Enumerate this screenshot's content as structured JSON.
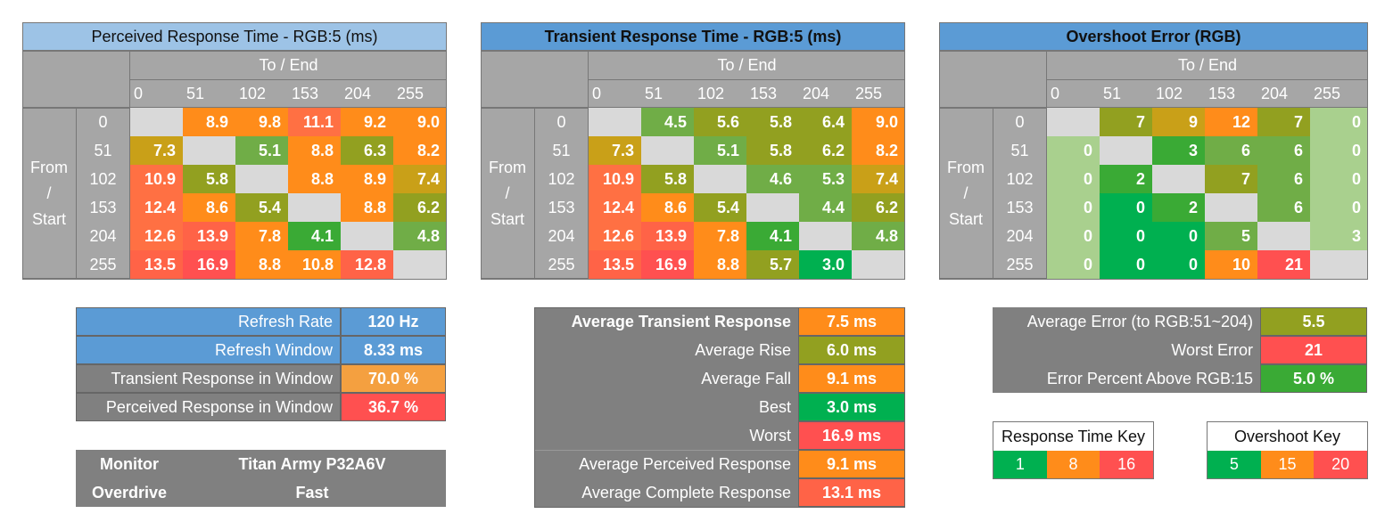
{
  "colors": {
    "green": "#00b050",
    "green_mid": "#3aaa35",
    "olive_green": "#70ad47",
    "olive": "#92a020",
    "gold": "#c9a018",
    "orange": "#ff8c1a",
    "orange_red": "#ff7043",
    "red": "#ff5050",
    "light_green": "#a9d08e",
    "gray_header": "#a6a6a6",
    "gray_table": "#808080",
    "blue": "#5b9bd5",
    "light_blue": "#9dc3e6"
  },
  "matrices": [
    {
      "title": "Perceived Response Time - RGB:5 (ms)",
      "title_style": "light",
      "to_end_label": "To / End",
      "from_label": [
        "From",
        "/",
        "Start"
      ],
      "columns": [
        "0",
        "51",
        "102",
        "153",
        "204",
        "255"
      ],
      "rows": [
        "0",
        "51",
        "102",
        "153",
        "204",
        "255"
      ],
      "values": [
        [
          "",
          "8.9",
          "9.8",
          "11.1",
          "9.2",
          "9.0"
        ],
        [
          "7.3",
          "",
          "5.1",
          "8.8",
          "6.3",
          "8.2"
        ],
        [
          "10.9",
          "5.8",
          "",
          "8.8",
          "8.9",
          "7.4"
        ],
        [
          "12.4",
          "8.6",
          "5.4",
          "",
          "8.8",
          "6.2"
        ],
        [
          "12.6",
          "13.9",
          "7.8",
          "4.1",
          "",
          "4.8"
        ],
        [
          "13.5",
          "16.9",
          "8.8",
          "10.8",
          "12.8",
          ""
        ]
      ],
      "cell_colors": [
        [
          "",
          "#ff8c1a",
          "#ff8c1a",
          "#ff7043",
          "#ff8c1a",
          "#ff8c1a"
        ],
        [
          "#c9a018",
          "",
          "#70ad47",
          "#ff8c1a",
          "#92a020",
          "#ff8c1a"
        ],
        [
          "#ff7043",
          "#92a020",
          "",
          "#ff8c1a",
          "#ff8c1a",
          "#c9a018"
        ],
        [
          "#ff7043",
          "#ff8c1a",
          "#92a020",
          "",
          "#ff8c1a",
          "#92a020"
        ],
        [
          "#ff7043",
          "#ff6347",
          "#ff8c1a",
          "#3aaa35",
          "",
          "#70ad47"
        ],
        [
          "#ff6347",
          "#ff5050",
          "#ff8c1a",
          "#ff8c1a",
          "#ff6347",
          ""
        ]
      ]
    },
    {
      "title": "Transient Response Time - RGB:5 (ms)",
      "title_style": "dark",
      "to_end_label": "To / End",
      "from_label": [
        "From",
        "/",
        "Start"
      ],
      "columns": [
        "0",
        "51",
        "102",
        "153",
        "204",
        "255"
      ],
      "rows": [
        "0",
        "51",
        "102",
        "153",
        "204",
        "255"
      ],
      "values": [
        [
          "",
          "4.5",
          "5.6",
          "5.8",
          "6.4",
          "9.0"
        ],
        [
          "7.3",
          "",
          "5.1",
          "5.8",
          "6.2",
          "8.2"
        ],
        [
          "10.9",
          "5.8",
          "",
          "4.6",
          "5.3",
          "7.4"
        ],
        [
          "12.4",
          "8.6",
          "5.4",
          "",
          "4.4",
          "6.2"
        ],
        [
          "12.6",
          "13.9",
          "7.8",
          "4.1",
          "",
          "4.8"
        ],
        [
          "13.5",
          "16.9",
          "8.8",
          "5.7",
          "3.0",
          ""
        ]
      ],
      "cell_colors": [
        [
          "",
          "#70ad47",
          "#92a020",
          "#92a020",
          "#92a020",
          "#ff8c1a"
        ],
        [
          "#c9a018",
          "",
          "#70ad47",
          "#92a020",
          "#92a020",
          "#ff8c1a"
        ],
        [
          "#ff7043",
          "#92a020",
          "",
          "#70ad47",
          "#70ad47",
          "#c9a018"
        ],
        [
          "#ff7043",
          "#ff8c1a",
          "#92a020",
          "",
          "#70ad47",
          "#92a020"
        ],
        [
          "#ff7043",
          "#ff6347",
          "#ff8c1a",
          "#3aaa35",
          "",
          "#70ad47"
        ],
        [
          "#ff6347",
          "#ff5050",
          "#ff8c1a",
          "#92a020",
          "#00b050",
          ""
        ]
      ]
    },
    {
      "title": "Overshoot Error (RGB)",
      "title_style": "dark",
      "to_end_label": "To / End",
      "from_label": [
        "From",
        "/",
        "Start"
      ],
      "columns": [
        "0",
        "51",
        "102",
        "153",
        "204",
        "255"
      ],
      "rows": [
        "0",
        "51",
        "102",
        "153",
        "204",
        "255"
      ],
      "values": [
        [
          "",
          "7",
          "9",
          "12",
          "7",
          "0"
        ],
        [
          "0",
          "",
          "3",
          "6",
          "6",
          "0"
        ],
        [
          "0",
          "2",
          "",
          "7",
          "6",
          "0"
        ],
        [
          "0",
          "0",
          "2",
          "",
          "6",
          "0"
        ],
        [
          "0",
          "0",
          "0",
          "5",
          "",
          "3"
        ],
        [
          "0",
          "0",
          "0",
          "10",
          "21",
          ""
        ]
      ],
      "cell_colors": [
        [
          "",
          "#92a020",
          "#c9a018",
          "#ff8c1a",
          "#92a020",
          "#a9d08e"
        ],
        [
          "#a9d08e",
          "",
          "#3aaa35",
          "#70ad47",
          "#70ad47",
          "#a9d08e"
        ],
        [
          "#a9d08e",
          "#3aaa35",
          "",
          "#92a020",
          "#70ad47",
          "#a9d08e"
        ],
        [
          "#a9d08e",
          "#00b050",
          "#3aaa35",
          "",
          "#70ad47",
          "#a9d08e"
        ],
        [
          "#a9d08e",
          "#00b050",
          "#00b050",
          "#70ad47",
          "",
          "#a9d08e"
        ],
        [
          "#a9d08e",
          "#00b050",
          "#00b050",
          "#ff8c1a",
          "#ff5050",
          ""
        ]
      ]
    }
  ],
  "refresh_table": [
    {
      "label": "Refresh Rate",
      "value": "120 Hz",
      "label_bg": "#5b9bd5",
      "value_bg": "#5b9bd5"
    },
    {
      "label": "Refresh Window",
      "value": "8.33 ms",
      "label_bg": "#5b9bd5",
      "value_bg": "#5b9bd5"
    },
    {
      "label": "Transient Response in Window",
      "value": "70.0 %",
      "label_bg": "#808080",
      "value_bg": "#f4a040"
    },
    {
      "label": "Perceived Response in Window",
      "value": "36.7 %",
      "label_bg": "#808080",
      "value_bg": "#ff5050"
    }
  ],
  "monitor_table": [
    {
      "label": "Monitor",
      "value": "Titan Army P32A6V"
    },
    {
      "label": "Overdrive",
      "value": "Fast"
    }
  ],
  "transient_summary": [
    {
      "label": "Average Transient Response",
      "value": "7.5 ms",
      "bold_label": true,
      "value_bg": "#ff8c1a"
    },
    {
      "label": "Average Rise",
      "value": "6.0 ms",
      "bold_label": false,
      "value_bg": "#92a020"
    },
    {
      "label": "Average Fall",
      "value": "9.1 ms",
      "bold_label": false,
      "value_bg": "#ff8c1a"
    },
    {
      "label": "Best",
      "value": "3.0 ms",
      "bold_label": false,
      "value_bg": "#00b050"
    },
    {
      "label": "Worst",
      "value": "16.9 ms",
      "bold_label": false,
      "value_bg": "#ff5050"
    },
    {
      "label": "Average Perceived Response",
      "value": "9.1 ms",
      "bold_label": false,
      "value_bg": "#ff8c1a"
    },
    {
      "label": "Average Complete Response",
      "value": "13.1 ms",
      "bold_label": false,
      "value_bg": "#ff6347"
    }
  ],
  "overshoot_summary": [
    {
      "label": "Average Error (to RGB:51~204)",
      "value": "5.5",
      "value_bg": "#92a020"
    },
    {
      "label": "Worst Error",
      "value": "21",
      "value_bg": "#ff5050"
    },
    {
      "label": "Error Percent Above RGB:15",
      "value": "5.0 %",
      "value_bg": "#3aaa35"
    }
  ],
  "response_key": {
    "title": "Response Time Key",
    "items": [
      {
        "label": "1",
        "color": "#00b050"
      },
      {
        "label": "8",
        "color": "#ff8c1a"
      },
      {
        "label": "16",
        "color": "#ff5050"
      }
    ]
  },
  "overshoot_key": {
    "title": "Overshoot Key",
    "items": [
      {
        "label": "5",
        "color": "#00b050"
      },
      {
        "label": "15",
        "color": "#ff8c1a"
      },
      {
        "label": "20",
        "color": "#ff5050"
      }
    ]
  }
}
